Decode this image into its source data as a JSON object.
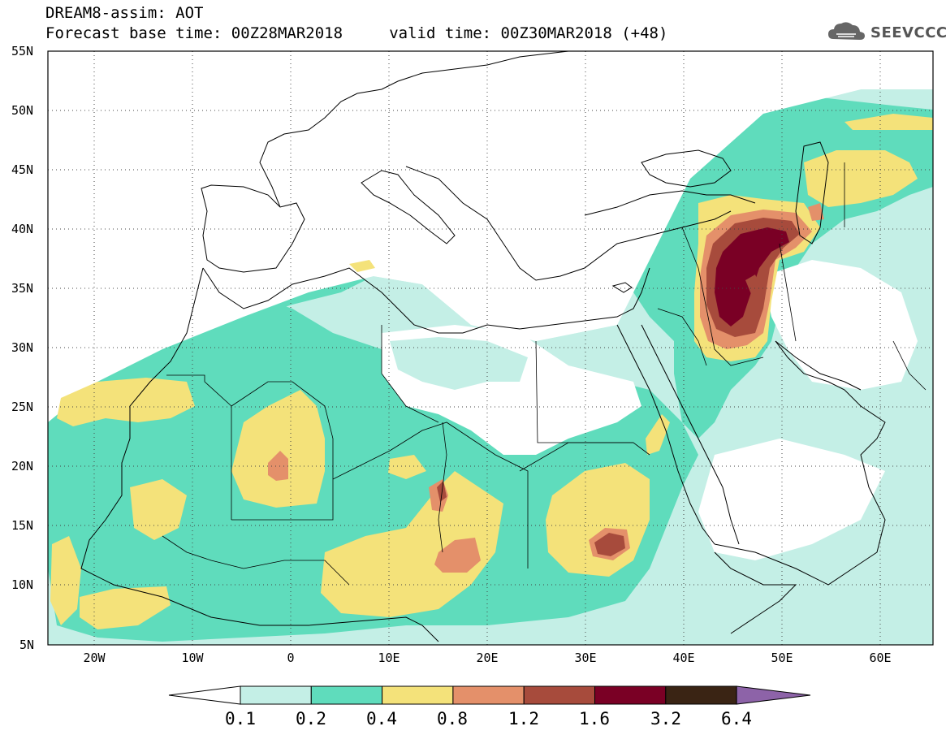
{
  "title": {
    "line1": "DREAM8-assim: AOT",
    "line2": "Forecast base time: 00Z28MAR2018     valid time: 00Z30MAR2018 (+48)"
  },
  "logo": {
    "text": "SEEVCCC",
    "icon": "cloud-icon"
  },
  "map": {
    "projection": "latitude-longitude",
    "lon_range": [
      -25,
      65
    ],
    "lat_range": [
      5,
      55
    ],
    "lat_ticks": [
      "55N",
      "50N",
      "45N",
      "40N",
      "35N",
      "30N",
      "25N",
      "20N",
      "15N",
      "10N",
      "5N"
    ],
    "lon_ticks": [
      "20W",
      "10W",
      "0",
      "10E",
      "20E",
      "30E",
      "40E",
      "50E",
      "60E"
    ],
    "grid": "dotted",
    "field": "Aerosol Optical Thickness (AOT)",
    "max_region": "Iraq / eastern Syria (~35N, 45E) exceeding 3.2"
  },
  "colorbar": {
    "labels": [
      "0.1",
      "0.2",
      "0.4",
      "0.8",
      "1.2",
      "1.6",
      "3.2",
      "6.4"
    ],
    "colors": [
      "#ffffff",
      "#c4efe6",
      "#5fdcbc",
      "#f4e27a",
      "#e4906a",
      "#a74b3c",
      "#7a0025",
      "#3a2414",
      "#8d63a8"
    ]
  }
}
